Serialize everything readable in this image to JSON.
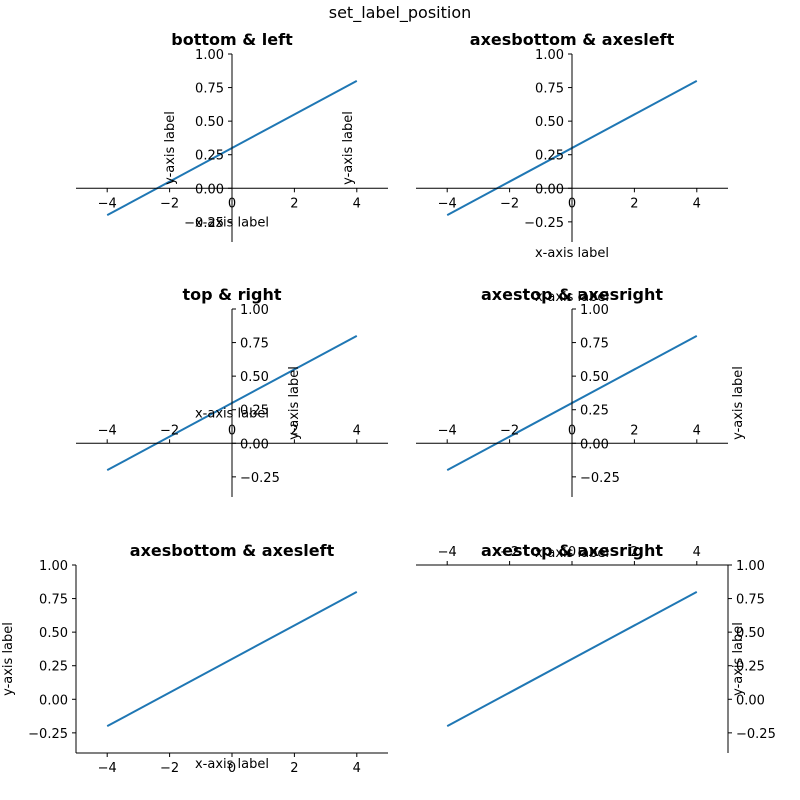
{
  "figure": {
    "title": "set_label_position"
  },
  "colors": {
    "series": "#1f77b4"
  },
  "chart_data": [
    {
      "type": "line",
      "title": "bottom & left",
      "xlabel": "x-axis label",
      "ylabel": "y-axis label",
      "xlim": [
        -5,
        5
      ],
      "ylim": [
        -0.4,
        1.0
      ],
      "xticks": [
        -4,
        -2,
        0,
        2,
        4
      ],
      "xtick_labels": [
        "−4",
        "−2",
        "0",
        "2",
        "4"
      ],
      "yticks": [
        -0.25,
        0.0,
        0.25,
        0.5,
        0.75,
        1.0
      ],
      "ytick_labels": [
        "−0.25",
        "0.00",
        "0.25",
        "0.50",
        "0.75",
        "1.00"
      ],
      "x": [
        -4,
        4
      ],
      "y": [
        -0.2,
        0.8
      ],
      "x_spine": "y = 0",
      "y_spine": "x = 0",
      "xtick_side": "bottom",
      "ytick_side": "left",
      "xlabel_position": "bottom",
      "ylabel_position": "left",
      "label_anchor": "spine"
    },
    {
      "type": "line",
      "title": "axesbottom & axesleft",
      "xlabel": "x-axis label",
      "ylabel": "y-axis label",
      "xlim": [
        -5,
        5
      ],
      "ylim": [
        -0.4,
        1.0
      ],
      "xticks": [
        -4,
        -2,
        0,
        2,
        4
      ],
      "xtick_labels": [
        "−4",
        "−2",
        "0",
        "2",
        "4"
      ],
      "yticks": [
        -0.25,
        0.0,
        0.25,
        0.5,
        0.75,
        1.0
      ],
      "ytick_labels": [
        "−0.25",
        "0.00",
        "0.25",
        "0.50",
        "0.75",
        "1.00"
      ],
      "x": [
        -4,
        4
      ],
      "y": [
        -0.2,
        0.8
      ],
      "x_spine": "y = 0",
      "y_spine": "x = 0",
      "xtick_side": "bottom",
      "ytick_side": "left",
      "xlabel_position": "bottom",
      "ylabel_position": "left",
      "label_anchor": "axes"
    },
    {
      "type": "line",
      "title": "top & right",
      "xlabel": "x-axis label",
      "ylabel": "y-axis label",
      "xlim": [
        -5,
        5
      ],
      "ylim": [
        -0.4,
        1.0
      ],
      "xticks": [
        -4,
        -2,
        0,
        2,
        4
      ],
      "xtick_labels": [
        "−4",
        "−2",
        "0",
        "2",
        "4"
      ],
      "yticks": [
        -0.25,
        0.0,
        0.25,
        0.5,
        0.75,
        1.0
      ],
      "ytick_labels": [
        "−0.25",
        "0.00",
        "0.25",
        "0.50",
        "0.75",
        "1.00"
      ],
      "x": [
        -4,
        4
      ],
      "y": [
        -0.2,
        0.8
      ],
      "x_spine": "y = 0",
      "y_spine": "x = 0",
      "xtick_side": "top",
      "ytick_side": "right",
      "xlabel_position": "top",
      "ylabel_position": "right",
      "label_anchor": "spine"
    },
    {
      "type": "line",
      "title": "axestop & axesright",
      "xlabel": "x-axis label",
      "ylabel": "y-axis label",
      "xlim": [
        -5,
        5
      ],
      "ylim": [
        -0.4,
        1.0
      ],
      "xticks": [
        -4,
        -2,
        0,
        2,
        4
      ],
      "xtick_labels": [
        "−4",
        "−2",
        "0",
        "2",
        "4"
      ],
      "yticks": [
        -0.25,
        0.0,
        0.25,
        0.5,
        0.75,
        1.0
      ],
      "ytick_labels": [
        "−0.25",
        "0.00",
        "0.25",
        "0.50",
        "0.75",
        "1.00"
      ],
      "x": [
        -4,
        4
      ],
      "y": [
        -0.2,
        0.8
      ],
      "x_spine": "y = 0",
      "y_spine": "x = 0",
      "xtick_side": "top",
      "ytick_side": "right",
      "xlabel_position": "top",
      "ylabel_position": "right",
      "label_anchor": "axes"
    },
    {
      "type": "line",
      "title": "axesbottom & axesleft",
      "xlabel": "x-axis label",
      "ylabel": "y-axis label",
      "xlim": [
        -5,
        5
      ],
      "ylim": [
        -0.4,
        1.0
      ],
      "xticks": [
        -4,
        -2,
        0,
        2,
        4
      ],
      "xtick_labels": [
        "−4",
        "−2",
        "0",
        "2",
        "4"
      ],
      "yticks": [
        -0.25,
        0.0,
        0.25,
        0.5,
        0.75,
        1.0
      ],
      "ytick_labels": [
        "−0.25",
        "0.00",
        "0.25",
        "0.50",
        "0.75",
        "1.00"
      ],
      "x": [
        -4,
        4
      ],
      "y": [
        -0.2,
        0.8
      ],
      "x_spine": "bottom",
      "y_spine": "left",
      "xtick_side": "bottom",
      "ytick_side": "left",
      "xlabel_position": "bottom",
      "ylabel_position": "left",
      "label_anchor": "axes"
    },
    {
      "type": "line",
      "title": "axestop & axesright",
      "xlabel": "x-axis label",
      "ylabel": "y-axis label",
      "xlim": [
        -5,
        5
      ],
      "ylim": [
        -0.4,
        1.0
      ],
      "xticks": [
        -4,
        -2,
        0,
        2,
        4
      ],
      "xtick_labels": [
        "−4",
        "−2",
        "0",
        "2",
        "4"
      ],
      "yticks": [
        -0.25,
        0.0,
        0.25,
        0.5,
        0.75,
        1.0
      ],
      "ytick_labels": [
        "−0.25",
        "0.00",
        "0.25",
        "0.50",
        "0.75",
        "1.00"
      ],
      "x": [
        -4,
        4
      ],
      "y": [
        -0.2,
        0.8
      ],
      "x_spine": "top",
      "y_spine": "right",
      "xtick_side": "top",
      "ytick_side": "right",
      "xlabel_position": "top",
      "ylabel_position": "right",
      "label_anchor": "axes"
    }
  ]
}
